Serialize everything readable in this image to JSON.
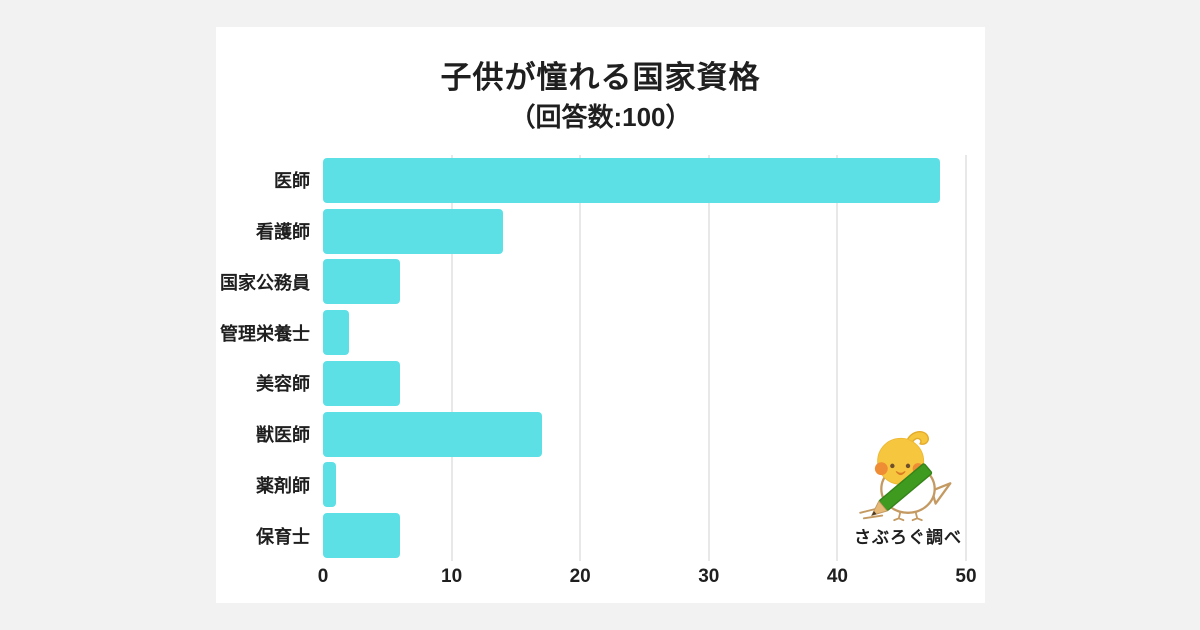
{
  "page": {
    "background_color": "#f2f2f2",
    "card_color": "#ffffff",
    "text_color": "#1f1f1f"
  },
  "chart_data": {
    "type": "bar",
    "orientation": "horizontal",
    "title": "子供が憧れる国家資格",
    "subtitle": "（回答数:100）",
    "categories": [
      "医師",
      "看護師",
      "国家公務員",
      "管理栄養士",
      "美容師",
      "獣医師",
      "薬剤師",
      "保育士"
    ],
    "values": [
      48,
      14,
      6,
      2,
      6,
      17,
      1,
      6
    ],
    "xlabel": "",
    "ylabel": "",
    "xlim": [
      0,
      50
    ],
    "xticks": [
      0,
      10,
      20,
      30,
      40,
      50
    ],
    "grid": true,
    "legend": false,
    "bar_color": "#5ce0e6",
    "gridline_color": "#e8e8e8"
  },
  "footer": {
    "credit": "さぶろぐ調べ",
    "mascot": "cockatiel-with-pencil"
  }
}
